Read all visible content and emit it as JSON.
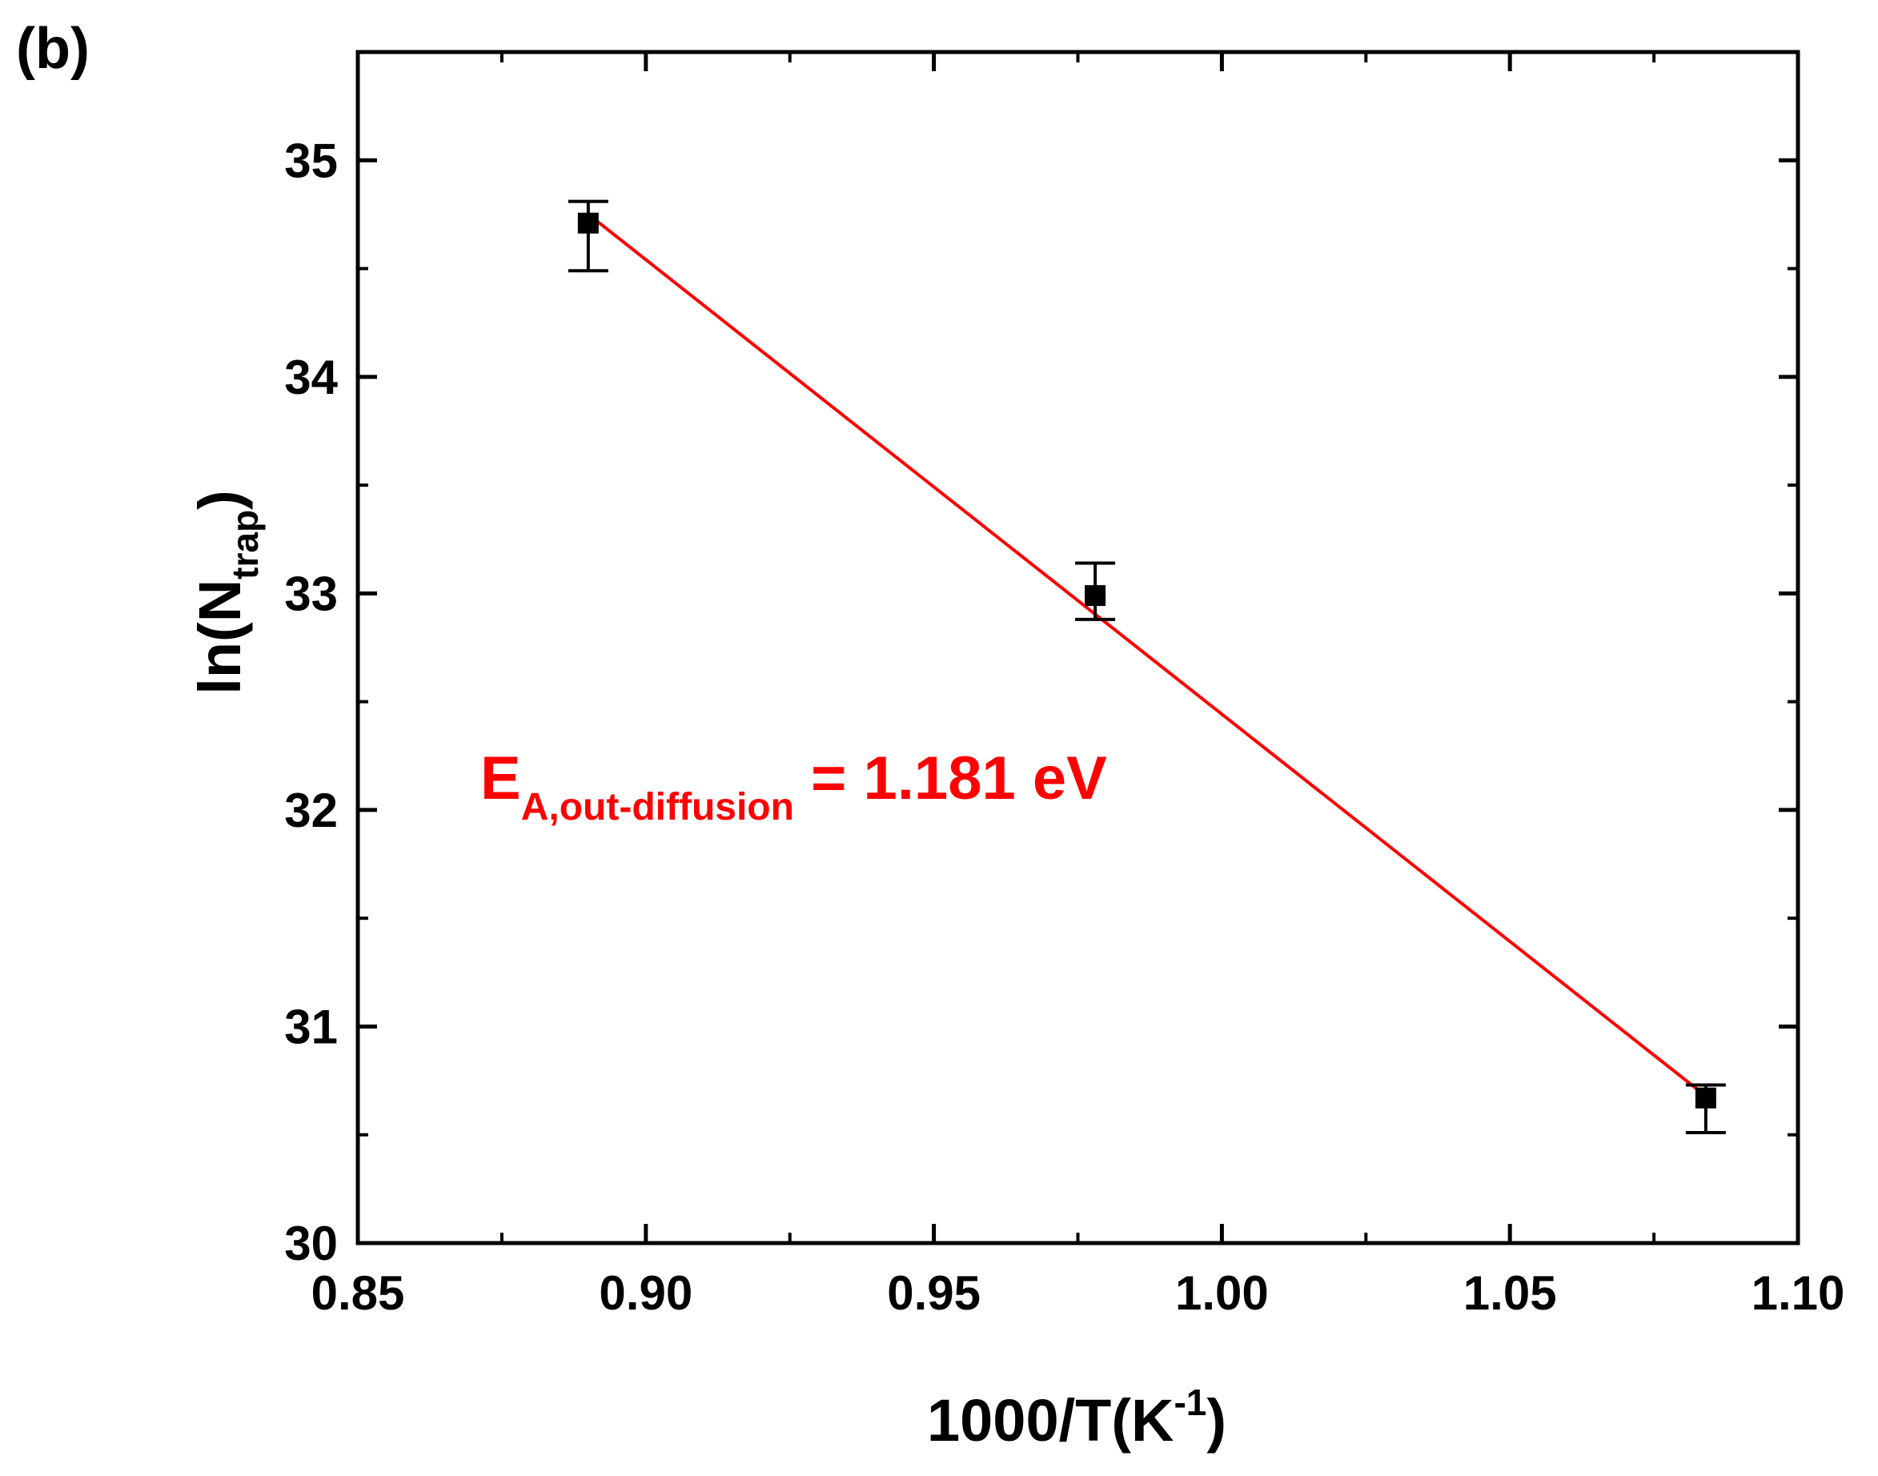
{
  "panel_label": "(b)",
  "colors": {
    "axis": "#000000",
    "fit": "#ff0000",
    "annotation": "#ff0000",
    "points": "#000000"
  },
  "chart_data": {
    "type": "scatter",
    "title": "",
    "xlabel": {
      "main": "1000/T(K",
      "sup": "-1",
      "end": ")"
    },
    "ylabel": {
      "main": "ln(N",
      "sub": "trap",
      "end": ")"
    },
    "xlim": [
      0.85,
      1.1
    ],
    "ylim": [
      30,
      35.5
    ],
    "x_ticks": [
      0.85,
      0.9,
      0.95,
      1.0,
      1.05,
      1.1
    ],
    "x_tick_labels": [
      "0.85",
      "0.90",
      "0.95",
      "1.00",
      "1.05",
      "1.10"
    ],
    "x_minor_ticks": [
      0.875,
      0.925,
      0.975,
      1.025,
      1.075
    ],
    "y_ticks": [
      30,
      31,
      32,
      33,
      34,
      35
    ],
    "y_tick_labels": [
      "30",
      "31",
      "32",
      "33",
      "34",
      "35"
    ],
    "y_minor_ticks": [
      30.5,
      31.5,
      32.5,
      33.5,
      34.5,
      35.5
    ],
    "grid": false,
    "series": [
      {
        "name": "data",
        "x": [
          0.89,
          0.978,
          1.084
        ],
        "y": [
          34.71,
          32.99,
          30.67
        ],
        "err_low": [
          34.49,
          32.88,
          30.51
        ],
        "err_high": [
          34.81,
          33.14,
          30.73
        ]
      }
    ],
    "fit": {
      "x": [
        0.891,
        1.083
      ],
      "y": [
        34.73,
        30.7
      ]
    },
    "annotation": {
      "main": "E",
      "sub": "A,out-diffusion",
      "rest": " = 1.181 eV"
    }
  }
}
